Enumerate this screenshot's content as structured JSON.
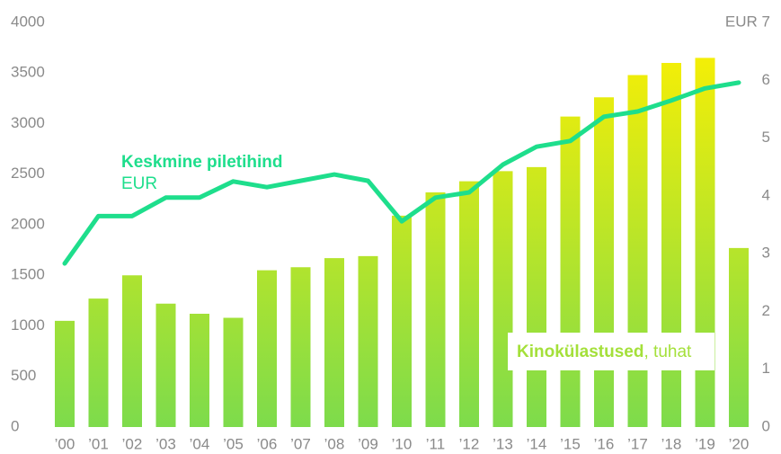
{
  "chart_data": {
    "type": "bar_line",
    "categories": [
      "’00",
      "’01",
      "’02",
      "’03",
      "’04",
      "’05",
      "’06",
      "’07",
      "’08",
      "’09",
      "’10",
      "’11",
      "’12",
      "’13",
      "’14",
      "’15",
      "’16",
      "’17",
      "’18",
      "’19",
      "’20"
    ],
    "series": [
      {
        "name": "Kinokülastused",
        "unit": ", tuhat",
        "type": "bar",
        "color": "#a4e03a",
        "values": [
          1050,
          1270,
          1500,
          1220,
          1120,
          1080,
          1550,
          1580,
          1670,
          1690,
          2090,
          2320,
          2430,
          2530,
          2570,
          3070,
          3260,
          3480,
          3600,
          3650,
          1770
        ]
      },
      {
        "name": "Keskmine piletihind",
        "unit": "EUR",
        "type": "line",
        "axis": "y2",
        "color": "#1ede8c",
        "values": [
          2.83,
          3.65,
          3.65,
          3.97,
          3.97,
          4.25,
          4.15,
          4.26,
          4.37,
          4.26,
          3.56,
          3.97,
          4.06,
          4.54,
          4.85,
          4.95,
          5.37,
          5.46,
          5.65,
          5.86,
          5.96
        ]
      }
    ],
    "ylim": [
      0,
      4000
    ],
    "yticks": [
      0,
      500,
      1000,
      1500,
      2000,
      2500,
      3000,
      3500,
      4000
    ],
    "y2lim": [
      0,
      7
    ],
    "y2ticks": [
      0,
      1,
      2,
      3,
      4,
      5,
      6,
      {
        "value": 7,
        "label": "EUR 7"
      }
    ]
  }
}
